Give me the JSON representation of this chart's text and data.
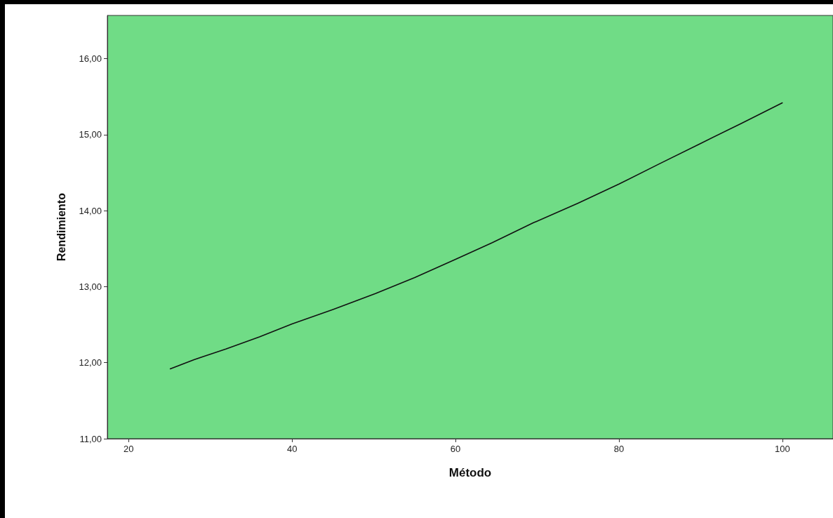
{
  "chart_data": {
    "type": "line",
    "xlabel": "Método",
    "ylabel": "Rendimiento",
    "x": [
      25.1,
      28,
      31.9,
      36,
      40,
      45,
      50.2,
      55,
      60,
      64.5,
      69.5,
      75,
      80,
      85,
      89.9,
      95,
      100
    ],
    "series": [
      {
        "color": "#111111",
        "values": [
          11.92,
          12.04,
          12.18,
          12.34,
          12.51,
          12.7,
          12.91,
          13.12,
          13.36,
          13.58,
          13.84,
          14.1,
          14.35,
          14.62,
          14.88,
          15.15,
          15.42
        ]
      }
    ],
    "xlim": [
      17.4,
      106.2
    ],
    "xticks": [
      20,
      40,
      60,
      80,
      100
    ],
    "ylim": [
      11,
      16.57
    ],
    "yticks": [
      {
        "value": 11,
        "label": "11,00"
      },
      {
        "value": 12,
        "label": "12,00"
      },
      {
        "value": 13,
        "label": "13,00"
      },
      {
        "value": 14,
        "label": "14,00"
      },
      {
        "value": 15,
        "label": "15,00"
      },
      {
        "value": 16,
        "label": "16,00"
      }
    ]
  }
}
